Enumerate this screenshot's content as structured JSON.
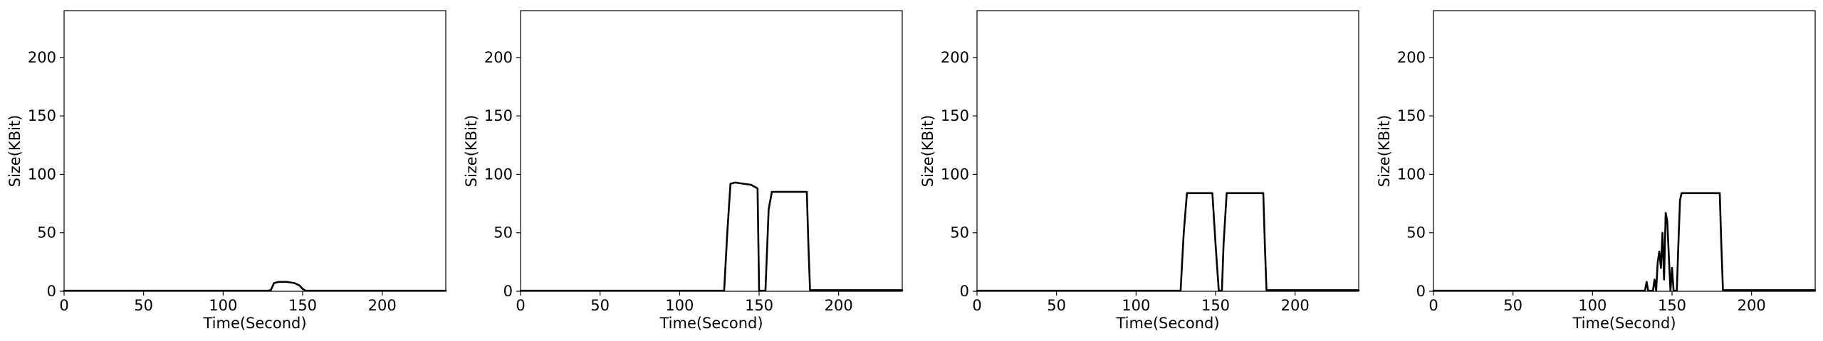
{
  "chart_data": [
    {
      "type": "line",
      "xlabel": "Time(Second)",
      "ylabel": "Size(KBit)",
      "xlim": [
        0,
        240
      ],
      "ylim": [
        0,
        240
      ],
      "xticks": [
        0,
        50,
        100,
        150,
        200
      ],
      "yticks": [
        0,
        50,
        100,
        150,
        200
      ],
      "line_color": "#000000",
      "grid": false,
      "series": [
        {
          "x": [
            0,
            50,
            100,
            128,
            130,
            132,
            135,
            140,
            145,
            148,
            150,
            152,
            155,
            160,
            170,
            180,
            190,
            200,
            210,
            220,
            230,
            240
          ],
          "values": [
            0.5,
            0.5,
            0.5,
            0.5,
            1,
            7,
            8,
            8,
            7,
            5,
            2,
            0.5,
            0.5,
            0.5,
            0.5,
            0.5,
            0.5,
            0.5,
            0.5,
            0.5,
            0.5,
            0.5
          ]
        }
      ]
    },
    {
      "type": "line",
      "xlabel": "Time(Second)",
      "ylabel": "Size(KBit)",
      "xlim": [
        0,
        240
      ],
      "ylim": [
        0,
        240
      ],
      "xticks": [
        0,
        50,
        100,
        150,
        200
      ],
      "yticks": [
        0,
        50,
        100,
        150,
        200
      ],
      "line_color": "#000000",
      "grid": false,
      "series": [
        {
          "x": [
            0,
            50,
            100,
            128,
            130,
            132,
            135,
            140,
            145,
            149,
            150,
            152,
            154,
            156,
            158,
            160,
            165,
            170,
            175,
            180,
            181,
            182,
            185,
            190,
            200,
            210,
            220,
            230,
            240
          ],
          "values": [
            0.5,
            0.5,
            0.5,
            0.5,
            50,
            92,
            93,
            92,
            91,
            88,
            0.5,
            0.5,
            0.5,
            70,
            85,
            85,
            85,
            85,
            85,
            85,
            40,
            1,
            1,
            1,
            1,
            1,
            1,
            1,
            1
          ]
        }
      ]
    },
    {
      "type": "line",
      "xlabel": "Time(Second)",
      "ylabel": "Size(KBit)",
      "xlim": [
        0,
        240
      ],
      "ylim": [
        0,
        240
      ],
      "xticks": [
        0,
        50,
        100,
        150,
        200
      ],
      "yticks": [
        0,
        50,
        100,
        150,
        200
      ],
      "line_color": "#000000",
      "grid": false,
      "series": [
        {
          "x": [
            0,
            50,
            100,
            128,
            130,
            132,
            135,
            140,
            145,
            148,
            150,
            152,
            154,
            155,
            157,
            160,
            165,
            170,
            175,
            180,
            181,
            182,
            185,
            190,
            200,
            210,
            220,
            230,
            240
          ],
          "values": [
            0.5,
            0.5,
            0.5,
            0.5,
            50,
            84,
            84,
            84,
            84,
            84,
            40,
            0.5,
            0.5,
            40,
            84,
            84,
            84,
            84,
            84,
            84,
            40,
            1,
            1,
            1,
            1,
            1,
            1,
            1,
            1
          ]
        }
      ]
    },
    {
      "type": "line",
      "xlabel": "Time(Second)",
      "ylabel": "Size(KBit)",
      "xlim": [
        0,
        240
      ],
      "ylim": [
        0,
        240
      ],
      "xticks": [
        0,
        50,
        100,
        150,
        200
      ],
      "yticks": [
        0,
        50,
        100,
        150,
        200
      ],
      "line_color": "#000000",
      "grid": false,
      "series": [
        {
          "x": [
            0,
            50,
            100,
            130,
            133,
            134,
            135,
            138,
            139,
            140,
            141,
            142,
            143,
            144,
            145,
            146,
            147,
            148,
            149,
            150,
            151,
            152,
            153,
            154,
            155,
            156,
            158,
            160,
            170,
            180,
            181,
            182,
            190,
            200,
            210,
            220,
            230,
            240
          ],
          "values": [
            0.5,
            0.5,
            0.5,
            0.5,
            0.5,
            8,
            0.5,
            0.5,
            10,
            0.5,
            25,
            34,
            20,
            50,
            10,
            67,
            60,
            30,
            0.5,
            20,
            0.5,
            0.5,
            0.5,
            40,
            78,
            84,
            84,
            84,
            84,
            84,
            40,
            1,
            1,
            1,
            1,
            1,
            1,
            1
          ]
        }
      ]
    }
  ]
}
